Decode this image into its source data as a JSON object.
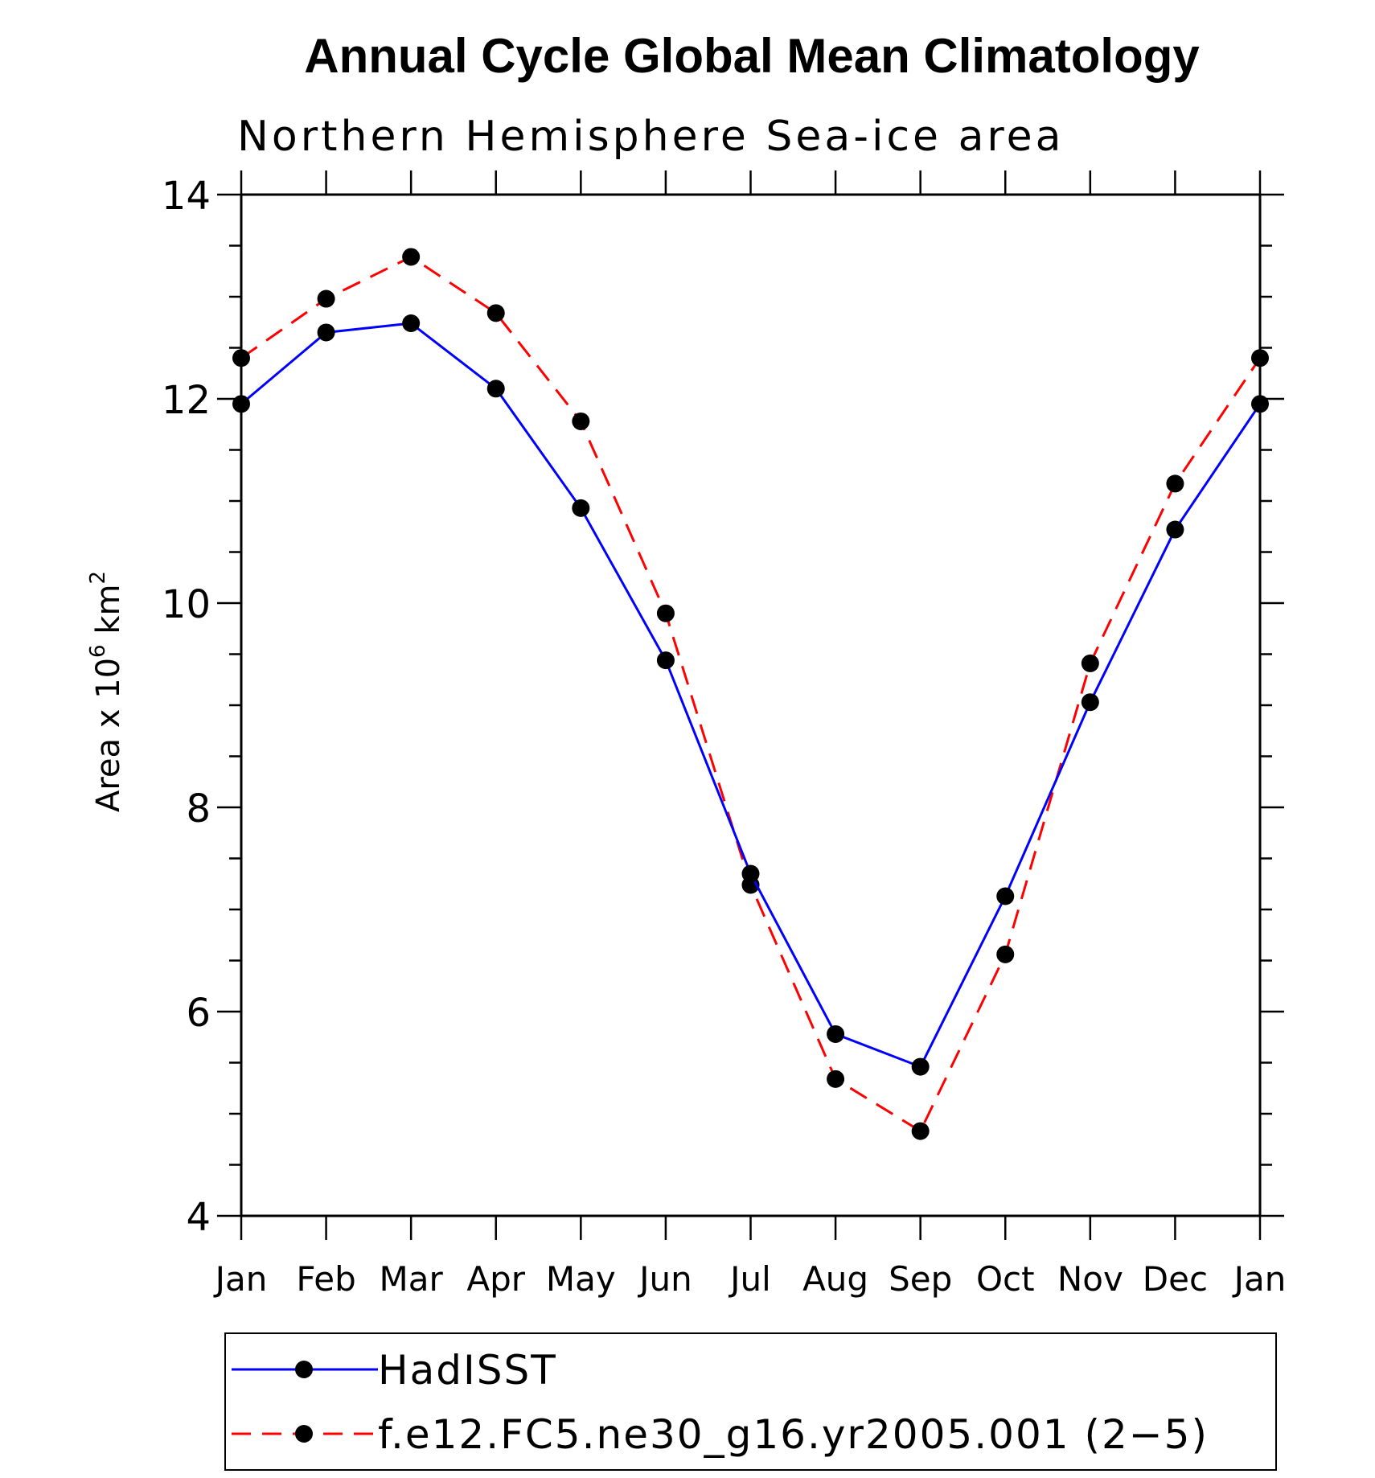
{
  "chart_data": {
    "type": "line",
    "title": "Annual Cycle Global Mean Climatology",
    "subtitle": "Northern Hemisphere Sea-ice area",
    "ylabel_prefix": "Area x 10",
    "ylabel_exp": "6",
    "ylabel_unit": " km",
    "ylabel_unit_exp": "2",
    "xlabel": "",
    "categories": [
      "Jan",
      "Feb",
      "Mar",
      "Apr",
      "May",
      "Jun",
      "Jul",
      "Aug",
      "Sep",
      "Oct",
      "Nov",
      "Dec",
      "Jan"
    ],
    "ylim": [
      4,
      14
    ],
    "yticks": [
      4,
      6,
      8,
      10,
      12,
      14
    ],
    "grid": false,
    "legend_position": "bottom",
    "series": [
      {
        "name": "HadISST",
        "color": "#0000ff",
        "dash": "solid",
        "marker": "filled-circle",
        "values": [
          11.95,
          12.65,
          12.74,
          12.1,
          10.93,
          9.44,
          7.35,
          5.78,
          5.46,
          7.13,
          9.03,
          10.72,
          11.95
        ]
      },
      {
        "name": "f.e12.FC5.ne30_g16.yr2005.001 (2−5)",
        "color": "#ff0000",
        "dash": "dashed",
        "marker": "filled-circle",
        "values": [
          12.4,
          12.98,
          13.39,
          12.84,
          11.78,
          9.9,
          7.24,
          5.34,
          4.83,
          6.56,
          9.41,
          11.17,
          12.4
        ]
      }
    ]
  }
}
